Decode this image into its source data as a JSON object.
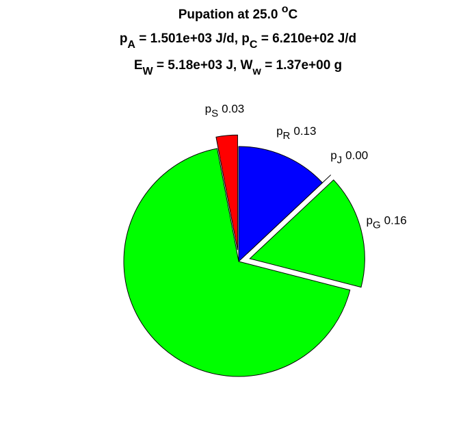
{
  "chart_data": {
    "type": "pie",
    "title": [
      [
        {
          "text": "Pupation at 25.0 "
        },
        {
          "text": "o",
          "sup": true
        },
        {
          "text": "C"
        }
      ],
      [
        {
          "text": "p"
        },
        {
          "text": "A",
          "sub": true
        },
        {
          "text": " = 1.501e+03 J/d, p"
        },
        {
          "text": "C",
          "sub": true
        },
        {
          "text": " = 6.210e+02 J/d"
        }
      ],
      [
        {
          "text": "E"
        },
        {
          "text": "W",
          "sub": true
        },
        {
          "text": " = 5.18e+03 J, W"
        },
        {
          "text": "w",
          "sub": true
        },
        {
          "text": " = 1.37e+00 g"
        }
      ]
    ],
    "categories": [
      {
        "main": "p",
        "sub": "R"
      },
      {
        "main": "p",
        "sub": "J"
      },
      {
        "main": "p",
        "sub": "G"
      },
      null,
      {
        "main": "p",
        "sub": "S"
      }
    ],
    "values": [
      0.13,
      0.0,
      0.16,
      0.68,
      0.03
    ],
    "value_labels": [
      "0.13",
      "0.00",
      "0.16",
      null,
      "0.03"
    ],
    "colors": [
      "#0000ff",
      "#ffffff",
      "#00ff00",
      "#00ff00",
      "#ff0000"
    ],
    "explode": [
      false,
      true,
      true,
      false,
      true
    ]
  }
}
